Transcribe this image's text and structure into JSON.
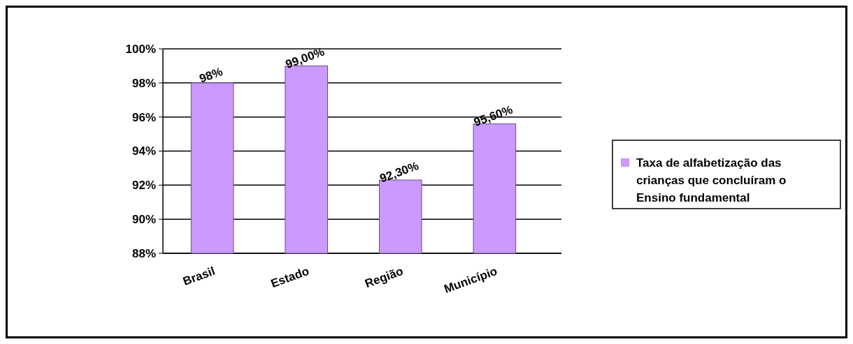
{
  "chart_data": {
    "type": "bar",
    "categories": [
      "Brasil",
      "Estado",
      "Região",
      "Município"
    ],
    "series": [
      {
        "name": "Taxa de alfabetização das crianças que concluíram o Ensino fundamental",
        "color": "#cc99ff",
        "values": [
          98,
          99,
          92.3,
          95.6
        ],
        "value_labels": [
          "98%",
          "99,00%",
          "92,30%",
          "95,60%"
        ]
      }
    ],
    "ylim": [
      88,
      100
    ],
    "yticks": [
      {
        "value": 88,
        "label": "88%"
      },
      {
        "value": 90,
        "label": "90%"
      },
      {
        "value": 92,
        "label": "92%"
      },
      {
        "value": 94,
        "label": "94%"
      },
      {
        "value": 96,
        "label": "96%"
      },
      {
        "value": 98,
        "label": "98%"
      },
      {
        "value": 100,
        "label": "100%"
      }
    ],
    "grid": "y",
    "legend": "right"
  }
}
